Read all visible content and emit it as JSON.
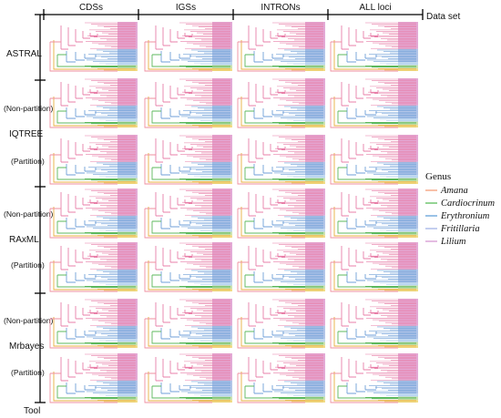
{
  "columns": [
    "CDSs",
    "IGSs",
    "INTRONs",
    "ALL loci"
  ],
  "column_axis_label": "Data set",
  "row_axis_label": "Tool",
  "tools": [
    {
      "name": "ASTRAL",
      "rows": [
        ""
      ]
    },
    {
      "name": "IQTREE",
      "rows": [
        "(Non-partition)",
        "(Partition)"
      ]
    },
    {
      "name": "RAxML",
      "rows": [
        "(Non-partition)",
        "(Partition)"
      ]
    },
    {
      "name": "Mrbayes",
      "rows": [
        "(Non-partition)",
        "(Partition)"
      ]
    }
  ],
  "legend": {
    "title": "Genus",
    "items": [
      {
        "label": "Amana",
        "color": "#f4a582"
      },
      {
        "label": "Cardiocrinum",
        "color": "#66c266"
      },
      {
        "label": "Erythronium",
        "color": "#6fa8dc"
      },
      {
        "label": "Fritillaria",
        "color": "#a9b8e8"
      },
      {
        "label": "Lilium",
        "color": "#d9a0d6"
      }
    ]
  },
  "tree_colors": {
    "lilium": "#e0a0d0",
    "lilium_line": "#e87fa8",
    "fritillaria": "#aabfe6",
    "fritillaria_line": "#6f9fd8",
    "erythronium": "#b8d4f0",
    "cardiocrinum": "#c6e0a6",
    "cardiocrinum_line": "#5cb85c",
    "amana": "#f0d87a",
    "amana_line": "#e8b040",
    "root_line": "#ef8f9f"
  }
}
